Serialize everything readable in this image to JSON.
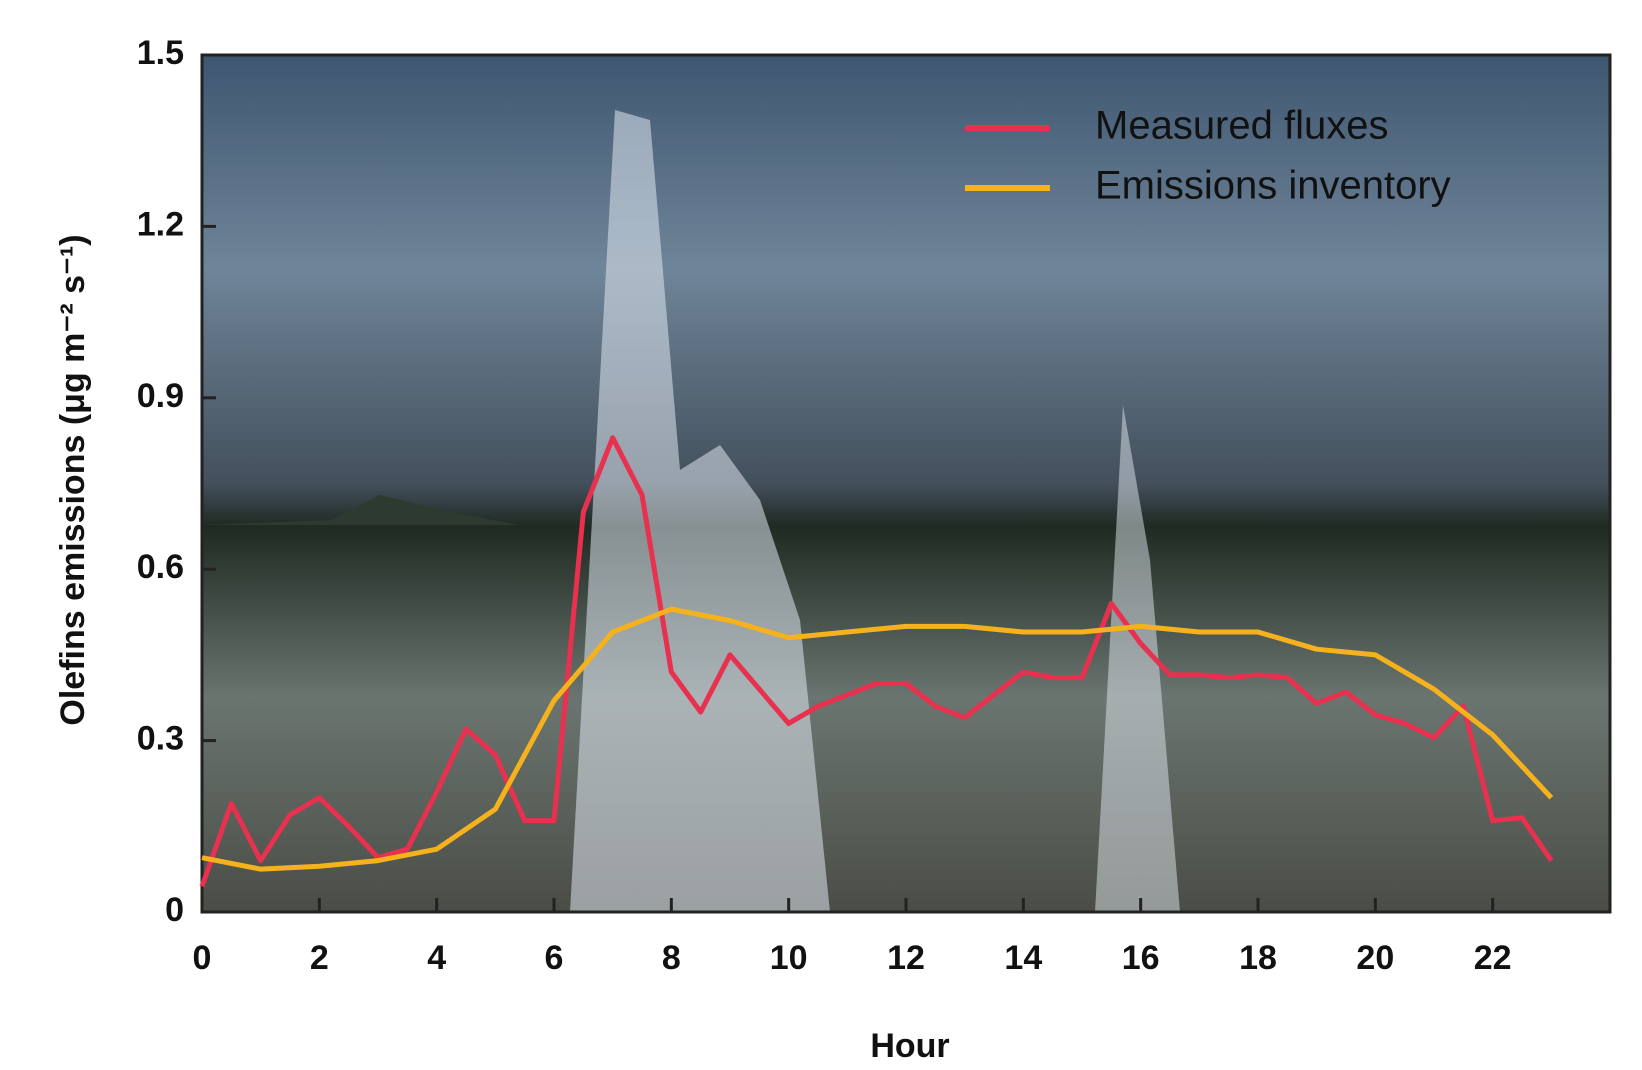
{
  "chart_data": {
    "type": "line",
    "ylabel": "Olefins emissions  (μg m⁻² s⁻¹)",
    "xlabel": "Hour",
    "xlim": [
      0,
      24
    ],
    "xticks": [
      0,
      2,
      4,
      6,
      8,
      10,
      12,
      14,
      16,
      18,
      20,
      22
    ],
    "ylim": [
      0,
      1.5
    ],
    "yticks": [
      0,
      0.3,
      0.6,
      0.9,
      1.2,
      {
        "value": 1.5,
        "label": "1.5"
      }
    ],
    "legend": "upper right",
    "series": [
      {
        "name": "Measured fluxes",
        "color": "#e8304f",
        "x": [
          0,
          0.5,
          1,
          1.5,
          2,
          2.5,
          3,
          3.5,
          4,
          4.5,
          5,
          5.5,
          6,
          6.5,
          7,
          7.5,
          8,
          8.5,
          9,
          9.5,
          10,
          10.5,
          11,
          11.5,
          12,
          12.5,
          13,
          13.5,
          14,
          14.5,
          15,
          15.5,
          16,
          16.5,
          17,
          17.5,
          18,
          18.5,
          19,
          19.5,
          20,
          20.5,
          21,
          21.5,
          22,
          22.5,
          23
        ],
        "values": [
          0.045,
          0.19,
          0.09,
          0.17,
          0.2,
          0.15,
          0.095,
          0.11,
          0.21,
          0.32,
          0.275,
          0.16,
          0.16,
          0.7,
          0.83,
          0.73,
          0.42,
          0.35,
          0.45,
          0.39,
          0.33,
          0.36,
          0.38,
          0.4,
          0.4,
          0.36,
          0.34,
          0.38,
          0.42,
          0.41,
          0.41,
          0.54,
          0.47,
          0.415,
          0.415,
          0.41,
          0.415,
          0.41,
          0.365,
          0.385,
          0.345,
          0.33,
          0.305,
          0.36,
          0.16,
          0.165,
          0.09
        ]
      },
      {
        "name": "Emissions inventory",
        "color": "#f5b21d",
        "x": [
          0,
          1,
          2,
          3,
          4,
          5,
          6,
          7,
          8,
          9,
          10,
          11,
          12,
          13,
          14,
          15,
          16,
          17,
          18,
          19,
          20,
          21,
          22,
          23
        ],
        "values": [
          0.095,
          0.075,
          0.08,
          0.09,
          0.11,
          0.18,
          0.37,
          0.49,
          0.53,
          0.51,
          0.48,
          0.49,
          0.5,
          0.5,
          0.49,
          0.49,
          0.5,
          0.49,
          0.49,
          0.46,
          0.45,
          0.39,
          0.31,
          0.2
        ]
      }
    ]
  }
}
